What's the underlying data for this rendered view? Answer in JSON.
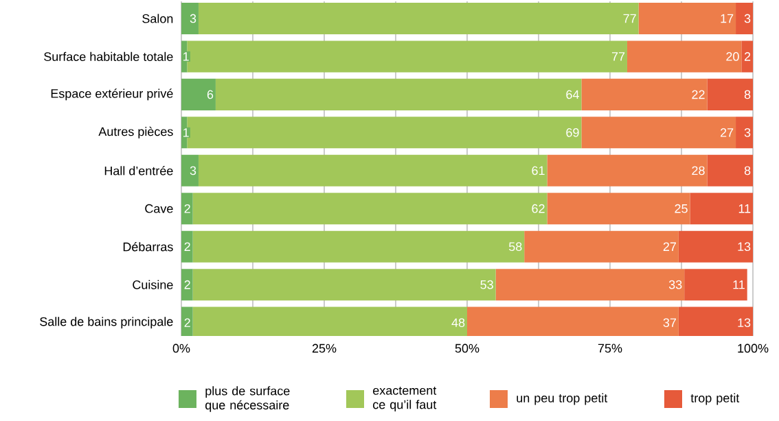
{
  "chart_data": {
    "type": "bar",
    "orientation": "horizontal",
    "stacked": true,
    "categories": [
      "Salon",
      "Surface habitable totale",
      "Espace extérieur privé",
      "Autres pièces",
      "Hall d’entrée",
      "Cave",
      "Débarras",
      "Cuisine",
      "Salle de bains principale"
    ],
    "series": [
      {
        "name": "plus de surface que nécessaire",
        "color": "#6cb35e",
        "values": [
          3,
          1,
          6,
          1,
          3,
          2,
          2,
          2,
          2
        ]
      },
      {
        "name": "exactement ce qu’il faut",
        "color": "#a2c759",
        "values": [
          77,
          77,
          64,
          69,
          61,
          62,
          58,
          53,
          48
        ]
      },
      {
        "name": "un peu trop petit",
        "color": "#ed7d4a",
        "values": [
          17,
          20,
          22,
          27,
          28,
          25,
          27,
          33,
          37
        ]
      },
      {
        "name": "trop petit",
        "color": "#e65a3a",
        "values": [
          3,
          2,
          8,
          3,
          8,
          11,
          13,
          11,
          13
        ]
      }
    ],
    "xlim": [
      0,
      100
    ],
    "xticks": [
      {
        "value": 0,
        "label": "0%"
      },
      {
        "value": 12.5,
        "label": null
      },
      {
        "value": 25,
        "label": "25%"
      },
      {
        "value": 37.5,
        "label": null
      },
      {
        "value": 50,
        "label": "50%"
      },
      {
        "value": 62.5,
        "label": null
      },
      {
        "value": 75,
        "label": "75%"
      },
      {
        "value": 87.5,
        "label": null
      },
      {
        "value": 100,
        "label": "100%"
      }
    ],
    "grid": "x",
    "data_labels": true,
    "legend": "bottom"
  }
}
